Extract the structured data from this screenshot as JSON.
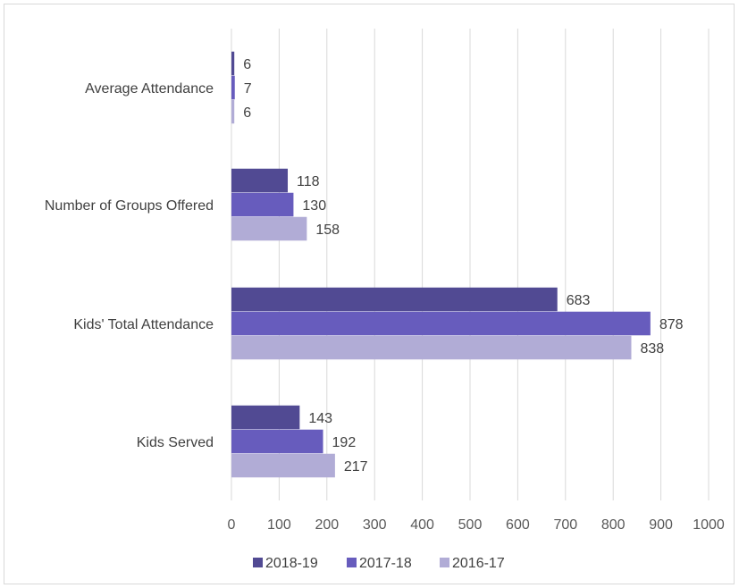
{
  "chart_data": {
    "type": "bar",
    "orientation": "horizontal",
    "categories": [
      "Average Attendance",
      "Number of Groups Offered",
      "Kids' Total Attendance",
      "Kids Served"
    ],
    "series": [
      {
        "name": "2018-19",
        "color": "#514a93",
        "values": [
          6,
          118,
          683,
          143
        ]
      },
      {
        "name": "2017-18",
        "color": "#675cbd",
        "values": [
          7,
          130,
          878,
          192
        ]
      },
      {
        "name": "2016-17",
        "color": "#b1acd6",
        "values": [
          6,
          158,
          838,
          217
        ]
      }
    ],
    "xlim": [
      0,
      1000
    ],
    "ticks": [
      "0",
      "100",
      "200",
      "300",
      "400",
      "500",
      "600",
      "700",
      "800",
      "900",
      "1000"
    ],
    "grid": true,
    "legend": "bottom-center"
  }
}
